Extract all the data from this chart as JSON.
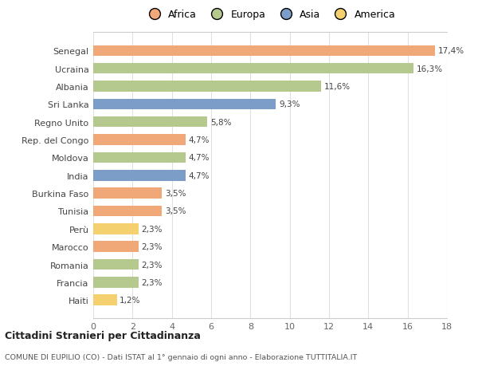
{
  "countries": [
    "Senegal",
    "Ucraina",
    "Albania",
    "Sri Lanka",
    "Regno Unito",
    "Rep. del Congo",
    "Moldova",
    "India",
    "Burkina Faso",
    "Tunisia",
    "Perù",
    "Marocco",
    "Romania",
    "Francia",
    "Haiti"
  ],
  "values": [
    17.4,
    16.3,
    11.6,
    9.3,
    5.8,
    4.7,
    4.7,
    4.7,
    3.5,
    3.5,
    2.3,
    2.3,
    2.3,
    2.3,
    1.2
  ],
  "labels": [
    "17,4%",
    "16,3%",
    "11,6%",
    "9,3%",
    "5,8%",
    "4,7%",
    "4,7%",
    "4,7%",
    "3,5%",
    "3,5%",
    "2,3%",
    "2,3%",
    "2,3%",
    "2,3%",
    "1,2%"
  ],
  "continents": [
    "Africa",
    "Europa",
    "Europa",
    "Asia",
    "Europa",
    "Africa",
    "Europa",
    "Asia",
    "Africa",
    "Africa",
    "America",
    "Africa",
    "Europa",
    "Europa",
    "America"
  ],
  "colors": {
    "Africa": "#F0A878",
    "Europa": "#B5C98E",
    "Asia": "#7B9DC8",
    "America": "#F5D06E"
  },
  "legend_order": [
    "Africa",
    "Europa",
    "Asia",
    "America"
  ],
  "title": "Cittadini Stranieri per Cittadinanza",
  "subtitle": "COMUNE DI EUPILIO (CO) - Dati ISTAT al 1° gennaio di ogni anno - Elaborazione TUTTITALIA.IT",
  "xlim": [
    0,
    18
  ],
  "xticks": [
    0,
    2,
    4,
    6,
    8,
    10,
    12,
    14,
    16,
    18
  ],
  "background_color": "#ffffff",
  "grid_color": "#e0e0e0"
}
